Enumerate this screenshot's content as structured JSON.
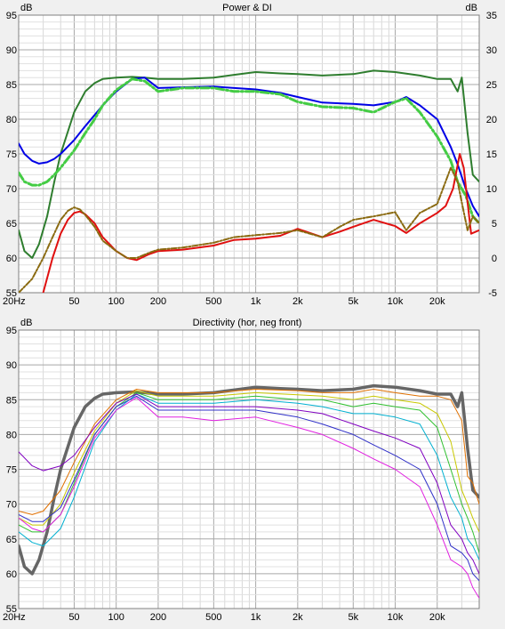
{
  "chart_data": [
    {
      "type": "line",
      "title": "Power & DI",
      "left_unit": "dB",
      "right_unit": "dB",
      "x_scale": "log",
      "xlim": [
        20,
        40000
      ],
      "ylim": [
        55,
        95
      ],
      "y2lim": [
        -5,
        35
      ],
      "x_ticks": [
        {
          "v": 20,
          "label": "20Hz"
        },
        {
          "v": 50,
          "label": "50"
        },
        {
          "v": 100,
          "label": "100"
        },
        {
          "v": 200,
          "label": "200"
        },
        {
          "v": 500,
          "label": "500"
        },
        {
          "v": 1000,
          "label": "1k"
        },
        {
          "v": 2000,
          "label": "2k"
        },
        {
          "v": 5000,
          "label": "5k"
        },
        {
          "v": 10000,
          "label": "10k"
        },
        {
          "v": 20000,
          "label": "20k"
        }
      ],
      "y_ticks": [
        55,
        60,
        65,
        70,
        75,
        80,
        85,
        90,
        95
      ],
      "y2_ticks": [
        -5,
        0,
        5,
        10,
        15,
        20,
        25,
        30,
        35
      ],
      "grid": true,
      "series": [
        {
          "color": "#2e7d2e",
          "width": 2,
          "dash": "",
          "axis": "left",
          "x": [
            20,
            22,
            25,
            28,
            32,
            36,
            40,
            50,
            60,
            70,
            80,
            100,
            130,
            160,
            200,
            300,
            500,
            700,
            1000,
            1500,
            2000,
            3000,
            5000,
            7000,
            10000,
            15000,
            20000,
            25000,
            28000,
            30000,
            33000,
            36000,
            40000
          ],
          "y": [
            64,
            61,
            60,
            62,
            66,
            71,
            75,
            81,
            84,
            85.2,
            85.8,
            86,
            86.1,
            86,
            85.8,
            85.8,
            86,
            86.4,
            86.8,
            86.6,
            86.5,
            86.3,
            86.5,
            87,
            86.8,
            86.3,
            85.8,
            85.8,
            84,
            86,
            78,
            72,
            71
          ]
        },
        {
          "color": "#0000e6",
          "width": 2,
          "dash": "",
          "axis": "left",
          "x": [
            20,
            22,
            25,
            28,
            32,
            36,
            40,
            50,
            60,
            70,
            80,
            100,
            130,
            160,
            200,
            300,
            500,
            700,
            1000,
            1500,
            2000,
            3000,
            5000,
            7000,
            10000,
            12000,
            15000,
            20000,
            25000,
            28000,
            32000,
            36000,
            40000
          ],
          "y": [
            76.5,
            75,
            74,
            73.6,
            73.8,
            74.3,
            75,
            77,
            79,
            80.6,
            82,
            84,
            85.8,
            86,
            84.5,
            84.6,
            84.7,
            84.5,
            84.3,
            83.8,
            83.2,
            82.4,
            82.2,
            82,
            82.5,
            83.2,
            82,
            80,
            76,
            73.5,
            70,
            67.5,
            66
          ]
        },
        {
          "color": "#44cc44",
          "width": 3,
          "dash": "9 3 2 3",
          "axis": "left",
          "x": [
            20,
            22,
            25,
            28,
            32,
            36,
            40,
            50,
            60,
            70,
            80,
            100,
            130,
            160,
            200,
            300,
            500,
            700,
            1000,
            1500,
            2000,
            3000,
            5000,
            7000,
            10000,
            12000,
            15000,
            20000,
            25000,
            28000,
            32000,
            36000,
            40000
          ],
          "y": [
            72.3,
            71,
            70.5,
            70.5,
            71,
            72,
            73,
            75.5,
            78,
            80,
            82,
            84.2,
            85.8,
            85.5,
            84,
            84.5,
            84.5,
            84,
            84,
            83.6,
            82.5,
            81.8,
            81.6,
            81,
            82.5,
            83,
            81,
            77.5,
            74,
            71,
            69,
            66,
            65
          ]
        },
        {
          "color": "#e01010",
          "width": 2,
          "dash": "",
          "axis": "right",
          "x": [
            30,
            35,
            40,
            45,
            50,
            55,
            60,
            70,
            80,
            100,
            120,
            140,
            170,
            200,
            300,
            500,
            700,
            1000,
            1500,
            2000,
            3000,
            4000,
            5000,
            7000,
            10000,
            12000,
            15000,
            20000,
            23000,
            26000,
            29000,
            31000,
            33000,
            35000,
            40000
          ],
          "y": [
            -5,
            0,
            3.5,
            5.5,
            6.5,
            6.7,
            6.3,
            5,
            3,
            1,
            0,
            -0.3,
            0.5,
            1,
            1.2,
            1.8,
            2.6,
            2.8,
            3.2,
            4.2,
            3,
            3.8,
            4.5,
            5.5,
            4.6,
            3.6,
            5,
            6.5,
            7.5,
            10,
            15,
            13,
            8,
            3.5,
            4
          ]
        },
        {
          "color": "#8a6a10",
          "width": 2,
          "dash": "6 2 2 2",
          "axis": "right",
          "x": [
            20,
            25,
            30,
            35,
            40,
            45,
            50,
            55,
            60,
            70,
            80,
            100,
            120,
            140,
            170,
            200,
            300,
            500,
            700,
            1000,
            1500,
            2000,
            3000,
            4000,
            5000,
            7000,
            10000,
            12000,
            15000,
            20000,
            25000,
            28000,
            30000,
            33000,
            36000,
            40000
          ],
          "y": [
            -5,
            -3,
            0,
            3,
            5.5,
            6.8,
            7.3,
            7,
            6.2,
            4.5,
            2.5,
            1,
            0,
            0,
            0.7,
            1.2,
            1.5,
            2.2,
            3,
            3.3,
            3.6,
            4,
            3,
            4.5,
            5.5,
            6,
            6.6,
            4,
            6.5,
            7.8,
            13,
            11,
            8,
            4,
            6,
            5
          ]
        }
      ]
    },
    {
      "type": "line",
      "title": "Directivity (hor, neg front)",
      "left_unit": "dB",
      "x_scale": "log",
      "xlim": [
        20,
        40000
      ],
      "ylim": [
        55,
        95
      ],
      "x_ticks": [
        {
          "v": 20,
          "label": "20Hz"
        },
        {
          "v": 50,
          "label": "50"
        },
        {
          "v": 100,
          "label": "100"
        },
        {
          "v": 200,
          "label": "200"
        },
        {
          "v": 500,
          "label": "500"
        },
        {
          "v": 1000,
          "label": "1k"
        },
        {
          "v": 2000,
          "label": "2k"
        },
        {
          "v": 5000,
          "label": "5k"
        },
        {
          "v": 10000,
          "label": "10k"
        },
        {
          "v": 20000,
          "label": "20k"
        }
      ],
      "y_ticks": [
        55,
        60,
        65,
        70,
        75,
        80,
        85,
        90,
        95
      ],
      "grid": true,
      "series": [
        {
          "color": "#666666",
          "width": 3.5,
          "dash": "",
          "axis": "left",
          "x": [
            20,
            22,
            25,
            28,
            32,
            36,
            40,
            50,
            60,
            70,
            80,
            100,
            130,
            160,
            200,
            300,
            500,
            700,
            1000,
            1500,
            2000,
            3000,
            5000,
            7000,
            10000,
            15000,
            20000,
            25000,
            28000,
            30000,
            33000,
            36000,
            40000
          ],
          "y": [
            64,
            61,
            60,
            62,
            66,
            71,
            75,
            81,
            84,
            85.2,
            85.8,
            86,
            86.1,
            86,
            85.8,
            85.8,
            86,
            86.4,
            86.8,
            86.6,
            86.5,
            86.3,
            86.5,
            87,
            86.8,
            86.3,
            85.8,
            85.8,
            84,
            86,
            78,
            72,
            71
          ]
        },
        {
          "color": "#e07000",
          "width": 1,
          "dash": "",
          "axis": "left",
          "x": [
            20,
            25,
            30,
            40,
            50,
            70,
            100,
            140,
            200,
            300,
            500,
            1000,
            2000,
            3000,
            5000,
            7000,
            10000,
            15000,
            20000,
            25000,
            30000,
            33000,
            36000,
            40000
          ],
          "y": [
            69,
            68.5,
            69,
            72,
            76,
            81.5,
            85,
            86.5,
            86,
            86,
            86,
            86.5,
            86.3,
            86,
            86,
            86.5,
            86,
            85.5,
            85.5,
            85,
            82,
            74,
            73,
            70
          ]
        },
        {
          "color": "#c8c800",
          "width": 1,
          "dash": "",
          "axis": "left",
          "x": [
            20,
            25,
            30,
            40,
            50,
            70,
            100,
            140,
            200,
            300,
            500,
            1000,
            2000,
            3000,
            5000,
            7000,
            10000,
            15000,
            20000,
            25000,
            30000,
            33000,
            36000,
            40000
          ],
          "y": [
            68,
            67,
            67,
            70,
            74.5,
            80.5,
            84.5,
            86.3,
            85.5,
            85.5,
            85.5,
            86,
            85.7,
            85.5,
            85,
            85.5,
            85,
            84.5,
            83,
            79,
            72,
            70,
            68,
            66
          ]
        },
        {
          "color": "#30c030",
          "width": 1,
          "dash": "",
          "axis": "left",
          "x": [
            20,
            25,
            30,
            40,
            50,
            70,
            100,
            140,
            200,
            300,
            500,
            1000,
            2000,
            3000,
            5000,
            7000,
            10000,
            15000,
            20000,
            25000,
            30000,
            33000,
            36000,
            40000
          ],
          "y": [
            67,
            66,
            66,
            68.5,
            73,
            80,
            84,
            86,
            85,
            85,
            85,
            85.5,
            85,
            85,
            84,
            84.5,
            84,
            83.5,
            81,
            75,
            70,
            68,
            66,
            63
          ]
        },
        {
          "color": "#00b0d0",
          "width": 1,
          "dash": "",
          "axis": "left",
          "x": [
            20,
            25,
            30,
            40,
            50,
            70,
            100,
            140,
            200,
            300,
            500,
            1000,
            2000,
            3000,
            5000,
            7000,
            10000,
            15000,
            20000,
            25000,
            30000,
            33000,
            36000,
            40000
          ],
          "y": [
            66,
            64.5,
            64,
            66.5,
            71,
            79,
            83.5,
            85.8,
            84.5,
            84.5,
            84.5,
            85,
            84.5,
            84,
            83,
            83,
            82.5,
            81.5,
            77,
            71,
            68,
            65,
            64,
            62
          ]
        },
        {
          "color": "#8000c0",
          "width": 1,
          "dash": "",
          "axis": "left",
          "x": [
            20,
            25,
            30,
            40,
            50,
            70,
            100,
            140,
            200,
            300,
            500,
            1000,
            2000,
            3000,
            5000,
            7000,
            10000,
            15000,
            20000,
            25000,
            30000,
            33000,
            36000,
            40000
          ],
          "y": [
            77.5,
            75.5,
            74.8,
            75.5,
            77,
            81,
            84.5,
            85.8,
            84,
            84,
            84,
            84,
            83.5,
            83,
            81.5,
            80.5,
            79.5,
            78,
            73,
            67,
            65,
            63,
            62,
            60
          ]
        },
        {
          "color": "#3030c8",
          "width": 1,
          "dash": "",
          "axis": "left",
          "x": [
            20,
            25,
            30,
            40,
            50,
            70,
            100,
            140,
            200,
            300,
            500,
            1000,
            2000,
            3000,
            5000,
            7000,
            10000,
            15000,
            20000,
            25000,
            30000,
            33000,
            36000,
            40000
          ],
          "y": [
            68.5,
            67.5,
            67.5,
            69.5,
            73.5,
            80,
            84,
            85.5,
            83.5,
            83.5,
            83.5,
            83.5,
            82.5,
            81.5,
            80,
            78.5,
            77,
            75,
            70,
            64,
            63,
            62,
            60,
            59
          ]
        },
        {
          "color": "#e020e0",
          "width": 1,
          "dash": "",
          "axis": "left",
          "x": [
            20,
            25,
            30,
            40,
            50,
            70,
            100,
            140,
            200,
            300,
            500,
            1000,
            2000,
            3000,
            5000,
            7000,
            10000,
            15000,
            20000,
            25000,
            30000,
            33000,
            36000,
            40000
          ],
          "y": [
            68,
            66.5,
            66,
            68.5,
            72.5,
            79.5,
            83.5,
            85.3,
            82.5,
            82.5,
            82,
            82.5,
            81,
            80,
            78,
            76.5,
            75,
            72.5,
            67,
            62,
            61,
            60,
            58,
            56.5
          ]
        }
      ]
    }
  ]
}
